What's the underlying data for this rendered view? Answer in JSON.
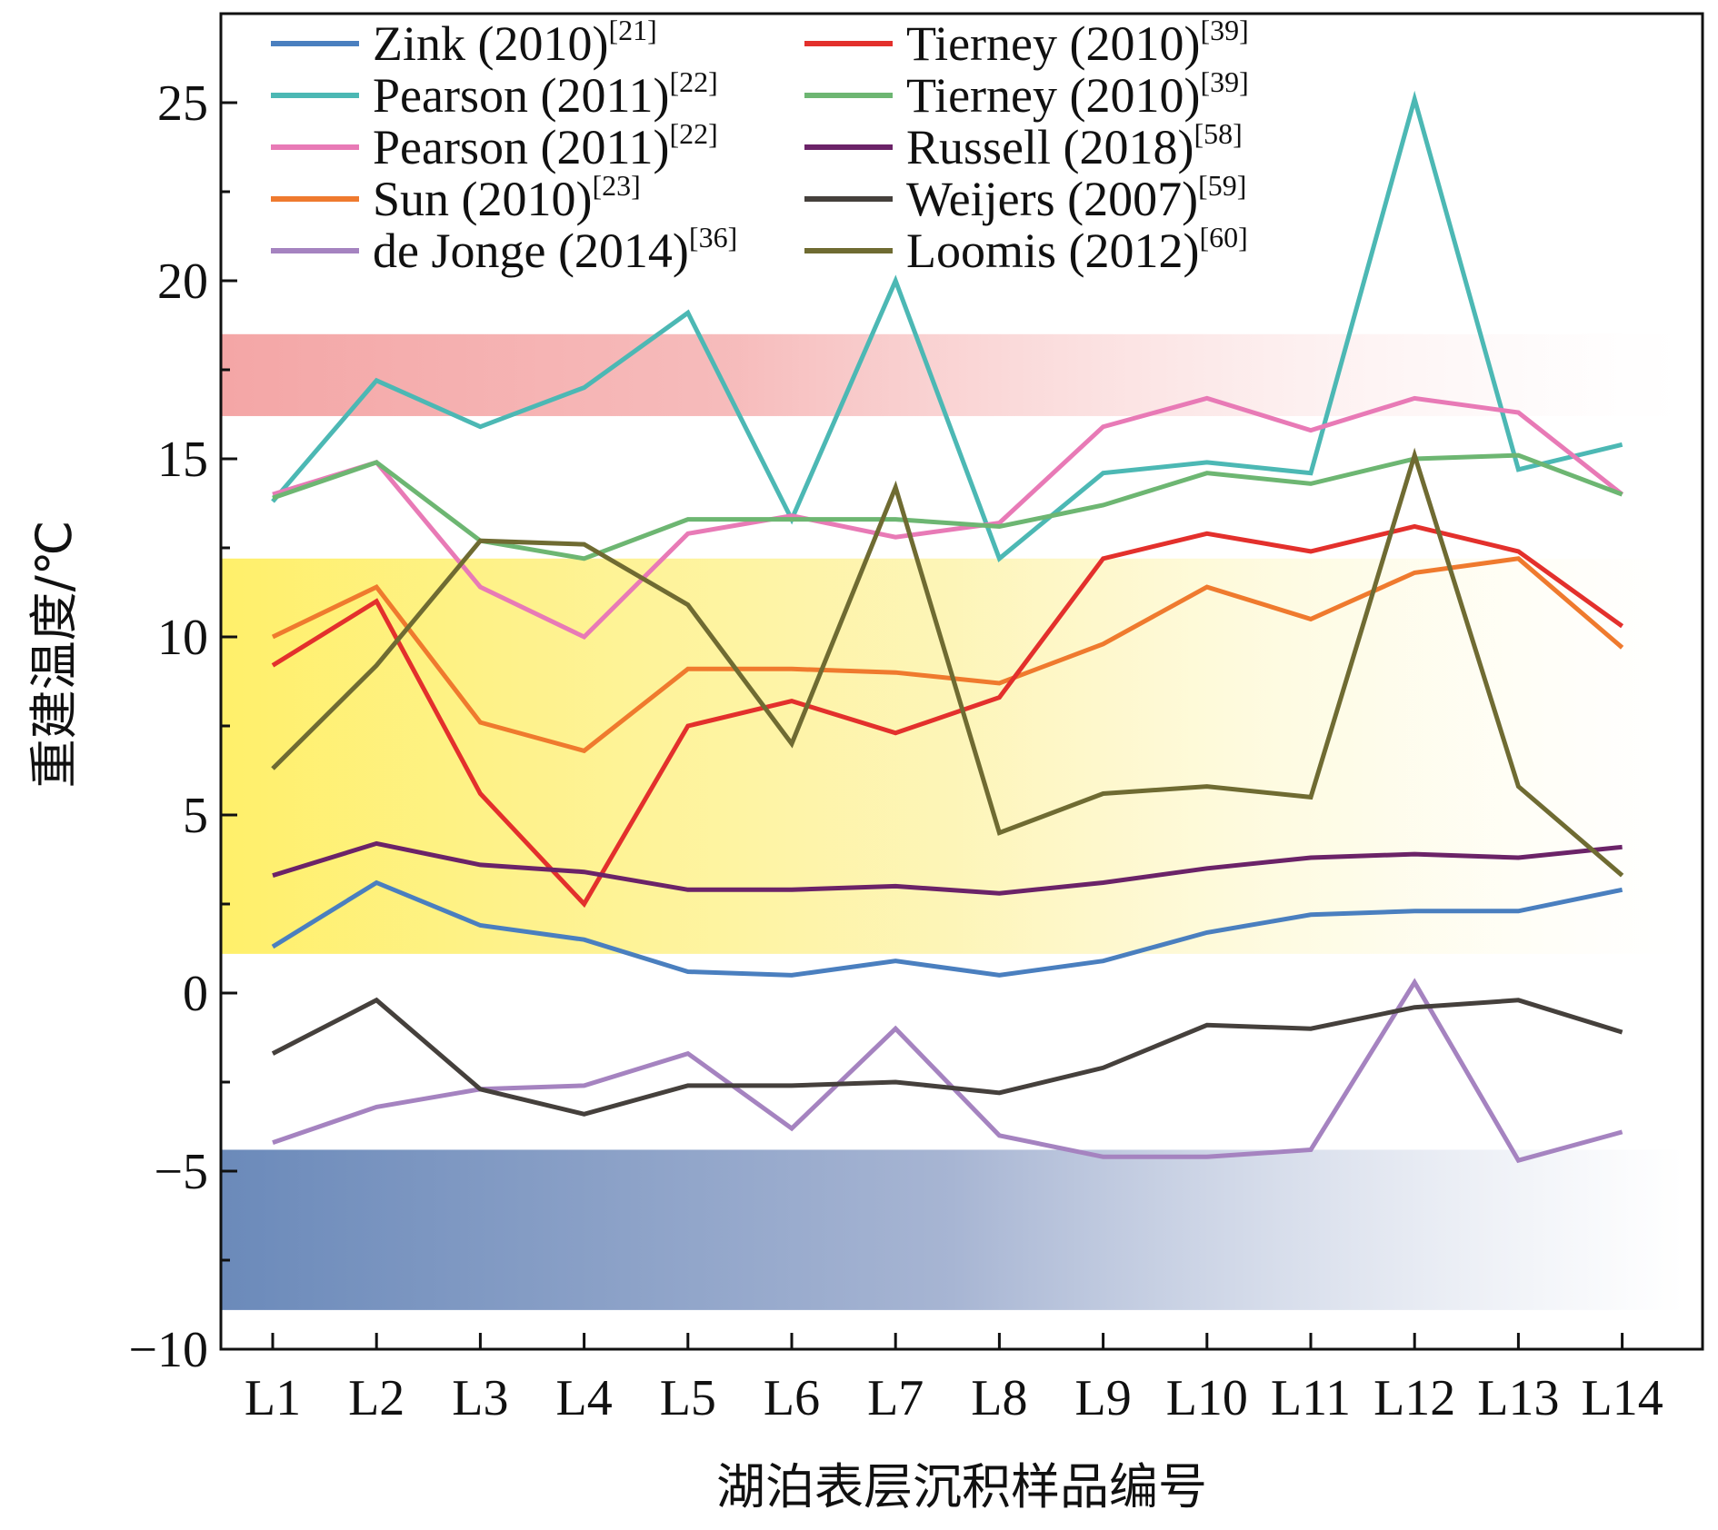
{
  "chart_data": {
    "type": "line",
    "title": "",
    "xlabel": "湖泊表层沉积样品编号",
    "ylabel": "重建温度/℃",
    "ylim": [
      -10,
      27.5
    ],
    "yticks": [
      -10,
      -5,
      0,
      5,
      10,
      15,
      20,
      25
    ],
    "ytick_labels": [
      "−10",
      "−5",
      "0",
      "5",
      "10",
      "15",
      "20",
      "25"
    ],
    "categories": [
      "L1",
      "L2",
      "L3",
      "L4",
      "L5",
      "L6",
      "L7",
      "L8",
      "L9",
      "L10",
      "L11",
      "L12",
      "L13",
      "L14"
    ],
    "legend_position": "top",
    "bands": [
      {
        "name": "red-band",
        "from": 16.2,
        "to": 18.5,
        "color": "#f4a6a6"
      },
      {
        "name": "yellow-band",
        "from": 1.1,
        "to": 12.2,
        "color": "#fff06a"
      },
      {
        "name": "blue-band",
        "from": -8.9,
        "to": -4.4,
        "color": "#6b8aba"
      }
    ],
    "series": [
      {
        "name": "Zink (2010)",
        "ref": "[21]",
        "color": "#4a7fbf",
        "values": [
          1.3,
          3.1,
          1.9,
          1.5,
          0.6,
          0.5,
          0.9,
          0.5,
          0.9,
          1.7,
          2.2,
          2.3,
          2.3,
          2.9
        ]
      },
      {
        "name": "Pearson (2011)",
        "ref": "[22]",
        "color": "#4cb8b4",
        "values": [
          13.8,
          17.2,
          15.9,
          17.0,
          19.1,
          13.3,
          20.0,
          12.2,
          14.6,
          14.9,
          14.6,
          25.1,
          14.7,
          15.4
        ]
      },
      {
        "name": "Pearson (2011)",
        "ref": "[22]",
        "color": "#e87ab6",
        "values": [
          14.0,
          14.9,
          11.4,
          10.0,
          12.9,
          13.4,
          12.8,
          13.2,
          15.9,
          16.7,
          15.8,
          16.7,
          16.3,
          14.0
        ]
      },
      {
        "name": "Sun (2010)",
        "ref": "[23]",
        "color": "#ef7a2e",
        "values": [
          10.0,
          11.4,
          7.6,
          6.8,
          9.1,
          9.1,
          9.0,
          8.7,
          9.8,
          11.4,
          10.5,
          11.8,
          12.2,
          9.7
        ]
      },
      {
        "name": "de Jonge (2014)",
        "ref": "[36]",
        "color": "#a583c0",
        "values": [
          -4.2,
          -3.2,
          -2.7,
          -2.6,
          -1.7,
          -3.8,
          -1.0,
          -4.0,
          -4.6,
          -4.6,
          -4.4,
          0.3,
          -4.7,
          -3.9
        ]
      },
      {
        "name": "Tierney (2010)",
        "ref": "[39]",
        "color": "#e3302c",
        "values": [
          9.2,
          11.0,
          5.6,
          2.5,
          7.5,
          8.2,
          7.3,
          8.3,
          12.2,
          12.9,
          12.4,
          13.1,
          12.4,
          10.3
        ]
      },
      {
        "name": "Tierney (2010)",
        "ref": "[39]",
        "color": "#6db672",
        "values": [
          13.9,
          14.9,
          12.7,
          12.2,
          13.3,
          13.3,
          13.3,
          13.1,
          13.7,
          14.6,
          14.3,
          15.0,
          15.1,
          14.0
        ]
      },
      {
        "name": "Russell (2018)",
        "ref": "[58]",
        "color": "#6b2368",
        "values": [
          3.3,
          4.2,
          3.6,
          3.4,
          2.9,
          2.9,
          3.0,
          2.8,
          3.1,
          3.5,
          3.8,
          3.9,
          3.8,
          4.1
        ]
      },
      {
        "name": "Weijers (2007)",
        "ref": "[59]",
        "color": "#45403c",
        "values": [
          -1.7,
          -0.2,
          -2.7,
          -3.4,
          -2.6,
          -2.6,
          -2.5,
          -2.8,
          -2.1,
          -0.9,
          -1.0,
          -0.4,
          -0.2,
          -1.1
        ]
      },
      {
        "name": "Loomis (2012)",
        "ref": "[60]",
        "color": "#6f6b32",
        "values": [
          6.3,
          9.2,
          12.7,
          12.6,
          10.9,
          7.0,
          14.2,
          4.5,
          5.6,
          5.8,
          5.5,
          15.1,
          5.8,
          3.3
        ]
      }
    ]
  }
}
